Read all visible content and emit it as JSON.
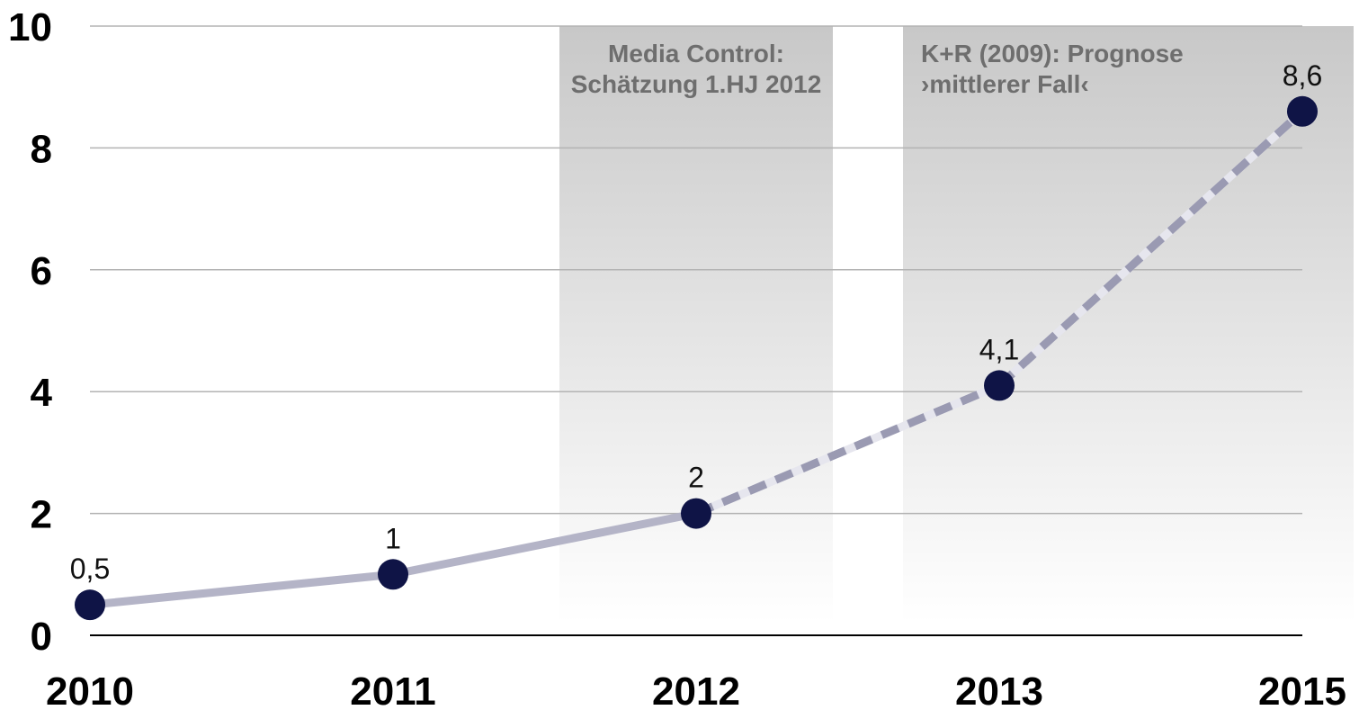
{
  "chart_data": {
    "type": "line",
    "categories": [
      "2010",
      "2011",
      "2012",
      "2013",
      "2015"
    ],
    "values": [
      0.5,
      1,
      2,
      4.1,
      8.6
    ],
    "data_labels": [
      "0,5",
      "1",
      "2",
      "4,1",
      "8,6"
    ],
    "line_style": [
      "solid",
      "solid",
      "dashed",
      "dashed"
    ],
    "ylim": [
      0,
      10
    ],
    "y_ticks": [
      0,
      2,
      4,
      6,
      8,
      10
    ],
    "grid": true,
    "shaded_regions": [
      {
        "from_category": "2012",
        "label_lines": [
          "Media Control:",
          "Schätzung 1.HJ 2012"
        ]
      },
      {
        "from_category": "2013",
        "label_lines": [
          "K+R (2009): Prognose",
          "›mittlerer Fall‹"
        ]
      }
    ],
    "colors": {
      "marker": "#0f1446",
      "line": "#b4b4c7",
      "dash": "#9a9ab2",
      "dash_gap": "#e6e6ee",
      "shade": "#c8c8c8",
      "grid": "#b3b3b3",
      "axis": "#000000"
    }
  }
}
